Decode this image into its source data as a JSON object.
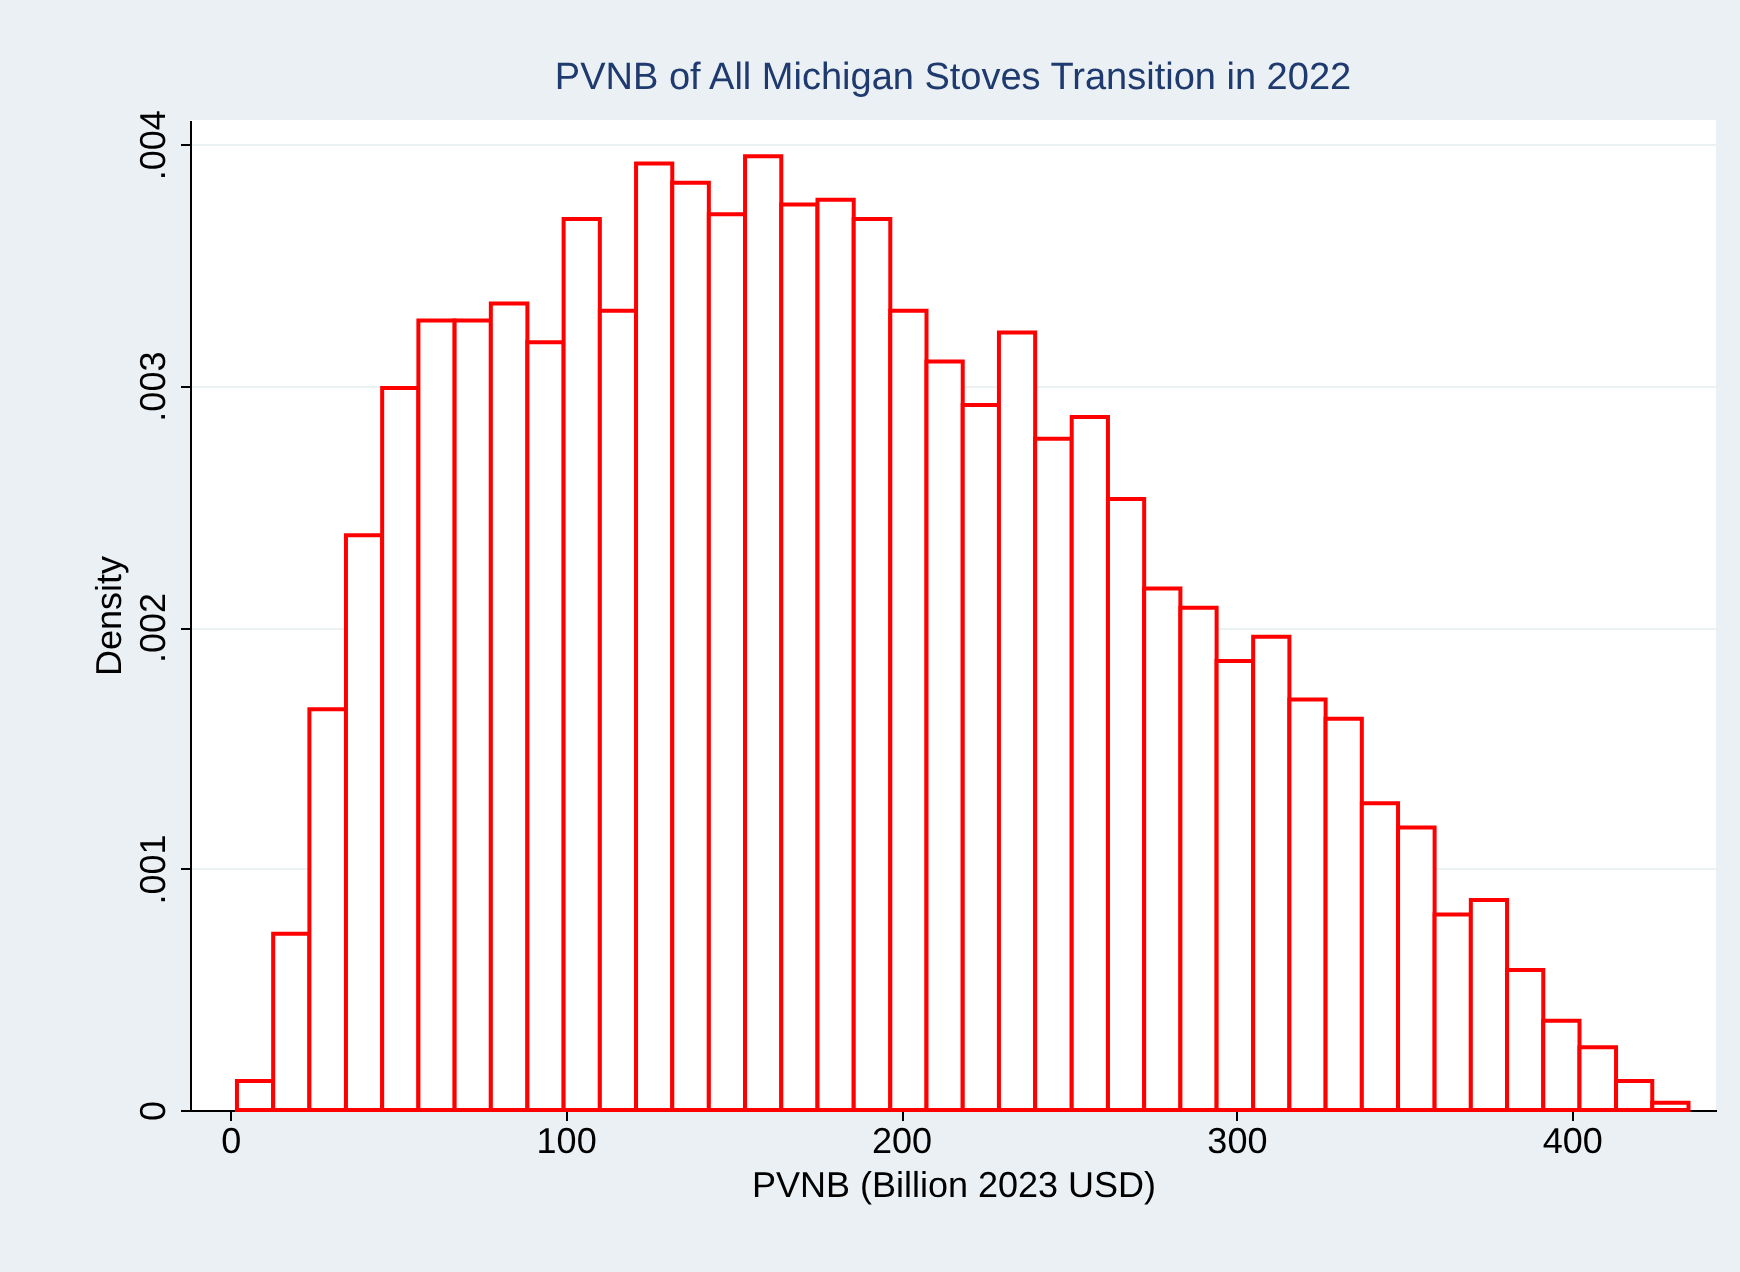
{
  "chart_data": {
    "type": "histogram",
    "title": "PVNB of All Michigan Stoves Transition in 2022",
    "xlabel": "PVNB (Billion 2023 USD)",
    "ylabel": "Density",
    "bins": [
      2.0,
      12.8,
      23.6,
      34.5,
      45.3,
      56.1,
      66.9,
      77.7,
      88.6,
      99.4,
      110.2,
      121.0,
      131.8,
      142.7,
      153.5,
      164.3,
      175.1,
      185.9,
      196.8,
      207.6,
      218.4,
      229.2,
      240.0,
      250.9,
      261.7,
      272.5,
      283.3,
      294.1,
      305.0,
      315.8,
      326.6,
      337.4,
      348.2,
      359.1,
      369.9,
      380.7,
      391.5,
      402.3,
      413.2,
      424.0,
      434.8
    ],
    "values": [
      0.00012,
      0.00073,
      0.00166,
      0.00238,
      0.00299,
      0.00327,
      0.00327,
      0.00334,
      0.00318,
      0.00369,
      0.00331,
      0.00392,
      0.00384,
      0.00371,
      0.00395,
      0.00375,
      0.00377,
      0.00369,
      0.00331,
      0.0031,
      0.00292,
      0.00322,
      0.00278,
      0.00287,
      0.00253,
      0.00216,
      0.00208,
      0.00186,
      0.00196,
      0.0017,
      0.00162,
      0.00127,
      0.00117,
      0.00081,
      0.00087,
      0.00058,
      0.00037,
      0.00026,
      0.00012,
      3e-05
    ],
    "color": "#ff0000",
    "xlim": [
      -12,
      443
    ],
    "ylim": [
      0,
      0.0041
    ],
    "xticks": [
      0,
      100,
      200,
      300,
      400
    ],
    "yticks": [
      0,
      {
        "value": 0.001,
        "label": ".001"
      },
      {
        "value": 0.002,
        "label": ".002"
      },
      {
        "value": 0.003,
        "label": ".003"
      },
      {
        "value": 0.004,
        "label": ".004"
      }
    ],
    "grid": "y"
  }
}
